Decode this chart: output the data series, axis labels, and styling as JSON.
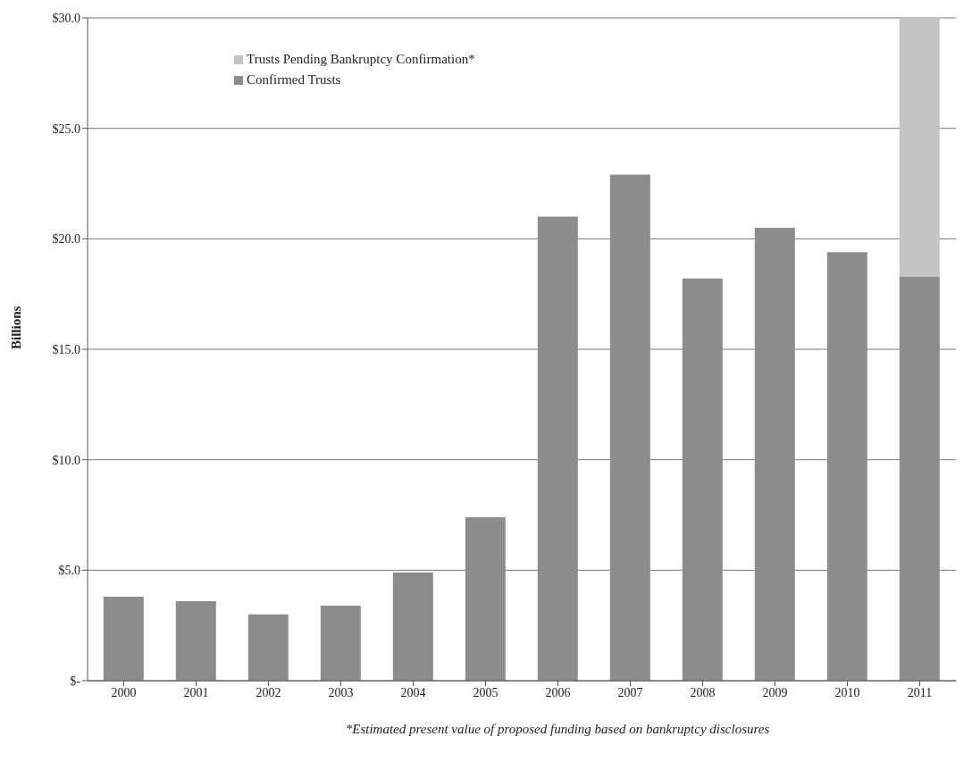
{
  "chart_data": {
    "type": "bar",
    "stacked": true,
    "ylabel": "Billions",
    "categories": [
      "2000",
      "2001",
      "2002",
      "2003",
      "2004",
      "2005",
      "2006",
      "2007",
      "2008",
      "2009",
      "2010",
      "2011"
    ],
    "series": [
      {
        "name": "Confirmed Trusts",
        "color": "#8c8c8c",
        "values": [
          3.8,
          3.6,
          3.0,
          3.4,
          4.9,
          7.4,
          21.0,
          22.9,
          18.2,
          20.5,
          19.4,
          18.3
        ]
      },
      {
        "name": "Trusts Pending Bankruptcy Confirmation*",
        "color": "#c4c4c4",
        "values": [
          null,
          null,
          null,
          null,
          null,
          null,
          null,
          null,
          null,
          null,
          null,
          11.7
        ]
      }
    ],
    "ylim": [
      0,
      30
    ],
    "yticks": [
      {
        "value": 0,
        "label": "$-"
      },
      {
        "value": 5,
        "label": "$5.0"
      },
      {
        "value": 10,
        "label": "$10.0"
      },
      {
        "value": 15,
        "label": "$15.0"
      },
      {
        "value": 20,
        "label": "$20.0"
      },
      {
        "value": 25,
        "label": "$25.0"
      },
      {
        "value": 30,
        "label": "$30.0"
      }
    ],
    "grid": "y",
    "legend": "top left",
    "annotations": [
      "*Estimated present value of proposed funding based on bankruptcy disclosures"
    ]
  }
}
